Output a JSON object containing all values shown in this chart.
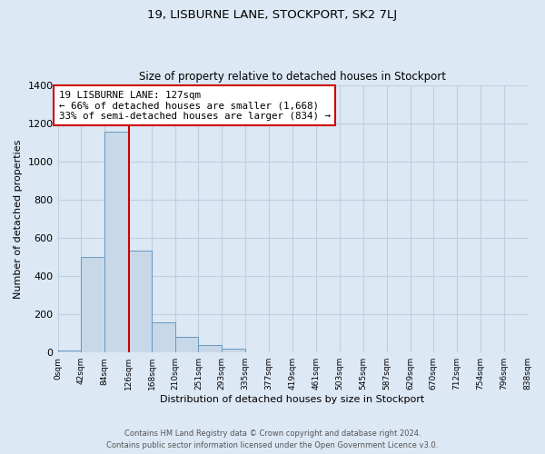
{
  "title": "19, LISBURNE LANE, STOCKPORT, SK2 7LJ",
  "subtitle": "Size of property relative to detached houses in Stockport",
  "xlabel": "Distribution of detached houses by size in Stockport",
  "ylabel": "Number of detached properties",
  "bar_heights": [
    10,
    500,
    1155,
    535,
    160,
    82,
    37,
    18,
    0,
    0,
    0,
    0,
    0,
    0,
    0,
    0,
    0,
    0,
    0,
    0
  ],
  "bin_labels": [
    "0sqm",
    "42sqm",
    "84sqm",
    "126sqm",
    "168sqm",
    "210sqm",
    "251sqm",
    "293sqm",
    "335sqm",
    "377sqm",
    "419sqm",
    "461sqm",
    "503sqm",
    "545sqm",
    "587sqm",
    "629sqm",
    "670sqm",
    "712sqm",
    "754sqm",
    "796sqm",
    "838sqm"
  ],
  "bin_edges": [
    0,
    42,
    84,
    126,
    168,
    210,
    251,
    293,
    335,
    377,
    419,
    461,
    503,
    545,
    587,
    629,
    670,
    712,
    754,
    796,
    838
  ],
  "bar_color": "#c8d8e8",
  "bar_edge_color": "#6898c0",
  "property_value": 127,
  "property_line_color": "#cc0000",
  "annotation_title": "19 LISBURNE LANE: 127sqm",
  "annotation_line1": "← 66% of detached houses are smaller (1,668)",
  "annotation_line2": "33% of semi-detached houses are larger (834) →",
  "annotation_box_color": "#ffffff",
  "annotation_box_edge_color": "#cc0000",
  "ylim": [
    0,
    1400
  ],
  "yticks": [
    0,
    200,
    400,
    600,
    800,
    1000,
    1200,
    1400
  ],
  "footnote1": "Contains HM Land Registry data © Crown copyright and database right 2024.",
  "footnote2": "Contains public sector information licensed under the Open Government Licence v3.0.",
  "background_color": "#dce8f4",
  "grid_color": "#c0d0e0"
}
